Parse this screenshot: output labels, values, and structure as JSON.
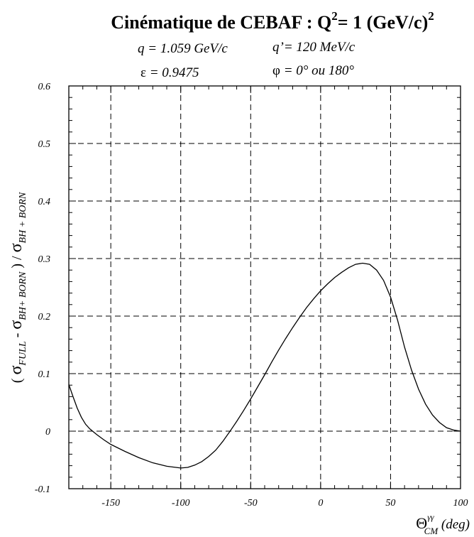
{
  "chart_data": {
    "type": "line",
    "title": {
      "prefix": "Cinématique de CEBAF : Q",
      "sup1": "2",
      "mid": "= 1 (GeV/c)",
      "sup2": "2"
    },
    "annotations": {
      "q": "q = 1.059 GeV/c",
      "qprime": "q’= 120 MeV/c",
      "eps_sym": "ε",
      "eps_val": " = 0.9475",
      "phi_sym": "φ",
      "phi_val": " = 0° ou 180°"
    },
    "ylabel": {
      "open": "( ",
      "sigma1": "σ",
      "sub1": "FULL",
      "minus": " - ",
      "sigma2": "σ",
      "sub2": "BH+ BORN",
      "close": " ) / ",
      "sigma3": "σ",
      "sub3": "BH + BORN"
    },
    "xlabel": {
      "theta": "Θ",
      "sup": "γγ",
      "sub": "CM",
      "unit": " (deg)"
    },
    "xlim": [
      -180,
      100
    ],
    "ylim": [
      -0.1,
      0.6
    ],
    "xticks": [
      -150,
      -100,
      -50,
      0,
      50,
      100
    ],
    "xtick_labels": [
      "-150",
      "-100",
      "-50",
      "0",
      "50",
      "100"
    ],
    "yticks": [
      -0.1,
      0,
      0.1,
      0.2,
      0.3,
      0.4,
      0.5,
      0.6
    ],
    "ytick_labels": [
      "-0.1",
      "0",
      "0.1",
      "0.2",
      "0.3",
      "0.4",
      "0.5",
      "0.6"
    ],
    "grid": true,
    "series": [
      {
        "x": [
          -180,
          -177,
          -174,
          -171,
          -168,
          -165,
          -160,
          -155,
          -150,
          -140,
          -130,
          -120,
          -110,
          -100,
          -95,
          -90,
          -85,
          -80,
          -75,
          -70,
          -65,
          -60,
          -55,
          -50,
          -45,
          -40,
          -35,
          -30,
          -25,
          -20,
          -15,
          -10,
          -5,
          0,
          5,
          10,
          15,
          20,
          25,
          30,
          35,
          40,
          45,
          50,
          55,
          60,
          65,
          70,
          75,
          80,
          85,
          90,
          95,
          100
        ],
        "y": [
          0.081,
          0.06,
          0.04,
          0.024,
          0.012,
          0.004,
          -0.006,
          -0.015,
          -0.023,
          -0.035,
          -0.046,
          -0.055,
          -0.061,
          -0.064,
          -0.063,
          -0.059,
          -0.053,
          -0.044,
          -0.033,
          -0.018,
          -0.001,
          0.017,
          0.036,
          0.056,
          0.077,
          0.098,
          0.12,
          0.141,
          0.161,
          0.18,
          0.198,
          0.215,
          0.23,
          0.244,
          0.256,
          0.267,
          0.276,
          0.284,
          0.29,
          0.292,
          0.29,
          0.28,
          0.262,
          0.233,
          0.193,
          0.146,
          0.106,
          0.073,
          0.047,
          0.028,
          0.015,
          0.006,
          0.002,
          0
        ]
      }
    ]
  }
}
